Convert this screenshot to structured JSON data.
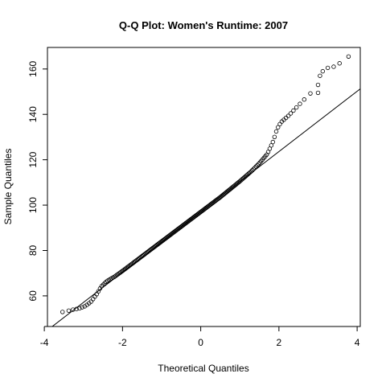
{
  "chart_data": {
    "type": "scatter",
    "title": "Q-Q Plot: Women's Runtime:  2007",
    "xlabel": "Theoretical Quantiles",
    "ylabel": "Sample Quantiles",
    "xlim": [
      -3.92,
      4.08
    ],
    "ylim": [
      46.5,
      169.5
    ],
    "xticks": [
      -4,
      -2,
      0,
      2,
      4
    ],
    "yticks": [
      60,
      80,
      100,
      120,
      140,
      160
    ],
    "reference_line": {
      "intercept": 97.0,
      "slope": 13.3
    },
    "anchors": [
      [
        -3.75,
        52.3
      ],
      [
        -3.5,
        53.0
      ],
      [
        -3.3,
        53.8
      ],
      [
        -3.1,
        54.5
      ],
      [
        -2.95,
        55.5
      ],
      [
        -2.8,
        57.5
      ],
      [
        -2.65,
        61.0
      ],
      [
        -2.55,
        64.0
      ],
      [
        -2.4,
        66.5
      ],
      [
        -2.2,
        68.5
      ],
      [
        -2.0,
        71.0
      ],
      [
        -1.5,
        77.5
      ],
      [
        -1.0,
        84.0
      ],
      [
        -0.5,
        90.5
      ],
      [
        0.0,
        97.0
      ],
      [
        0.5,
        103.5
      ],
      [
        1.0,
        110.5
      ],
      [
        1.3,
        115.0
      ],
      [
        1.5,
        118.5
      ],
      [
        1.7,
        122.5
      ],
      [
        1.85,
        128.0
      ],
      [
        1.95,
        133.5
      ],
      [
        2.05,
        136.5
      ],
      [
        2.25,
        139.5
      ],
      [
        2.5,
        144.0
      ],
      [
        2.7,
        147.5
      ],
      [
        2.85,
        150.0
      ],
      [
        2.95,
        152.0
      ],
      [
        3.02,
        153.5
      ]
    ],
    "extreme_points": [
      {
        "x": 3.05,
        "y": 157.0
      },
      {
        "x": 3.12,
        "y": 159.0
      },
      {
        "x": 3.25,
        "y": 160.5
      },
      {
        "x": 3.4,
        "y": 161.0
      },
      {
        "x": 3.55,
        "y": 162.5
      },
      {
        "x": 3.78,
        "y": 165.5
      },
      {
        "x": 3.0,
        "y": 149.5
      },
      {
        "x": 3.0,
        "y": 153.0
      }
    ],
    "point_count": 200,
    "grid": false,
    "legend": "none"
  }
}
